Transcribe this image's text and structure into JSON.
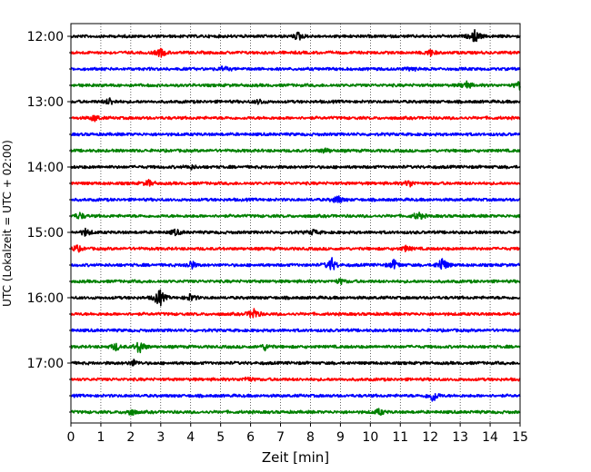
{
  "chart_data": {
    "type": "line",
    "title": "",
    "xlabel": "Zeit  [min]",
    "ylabel": "UTC (Lokalzeit = UTC + 02:00)",
    "xlim": [
      0,
      15
    ],
    "x_ticks": [
      "0",
      "1",
      "2",
      "3",
      "4",
      "5",
      "6",
      "7",
      "8",
      "9",
      "10",
      "11",
      "12",
      "13",
      "14",
      "15"
    ],
    "y_ticks": [
      "12:00",
      "13:00",
      "14:00",
      "15:00",
      "16:00",
      "17:00"
    ],
    "grid": "vertical dotted lines at every minute",
    "trace_interval_minutes": 15,
    "trace_colors": [
      "#000000",
      "#ff0000",
      "#0000ff",
      "#008000"
    ],
    "series": [
      {
        "start": "12:00",
        "color": "#000000",
        "events": [
          {
            "t": 7.6,
            "amp": 0.5
          },
          {
            "t": 13.5,
            "amp": 0.8
          }
        ]
      },
      {
        "start": "12:15",
        "color": "#ff0000",
        "events": [
          {
            "t": 3.0,
            "amp": 0.55
          },
          {
            "t": 12.0,
            "amp": 0.4
          }
        ]
      },
      {
        "start": "12:30",
        "color": "#0000ff",
        "events": [
          {
            "t": 5.1,
            "amp": 0.3
          },
          {
            "t": 11.4,
            "amp": 0.25
          }
        ]
      },
      {
        "start": "12:45",
        "color": "#008000",
        "events": [
          {
            "t": 13.2,
            "amp": 0.5
          },
          {
            "t": 15.0,
            "amp": 0.6
          }
        ]
      },
      {
        "start": "13:00",
        "color": "#000000",
        "events": [
          {
            "t": 1.3,
            "amp": 0.45
          },
          {
            "t": 6.3,
            "amp": 0.3
          }
        ]
      },
      {
        "start": "13:15",
        "color": "#ff0000",
        "events": [
          {
            "t": 0.8,
            "amp": 0.4
          }
        ]
      },
      {
        "start": "13:30",
        "color": "#0000ff",
        "events": []
      },
      {
        "start": "13:45",
        "color": "#008000",
        "events": [
          {
            "t": 8.5,
            "amp": 0.3
          }
        ]
      },
      {
        "start": "14:00",
        "color": "#000000",
        "events": [
          {
            "t": 4.0,
            "amp": 0.25
          }
        ]
      },
      {
        "start": "14:15",
        "color": "#ff0000",
        "events": [
          {
            "t": 2.6,
            "amp": 0.35
          },
          {
            "t": 11.3,
            "amp": 0.45
          }
        ]
      },
      {
        "start": "14:30",
        "color": "#0000ff",
        "events": [
          {
            "t": 8.9,
            "amp": 0.55
          }
        ]
      },
      {
        "start": "14:45",
        "color": "#008000",
        "events": [
          {
            "t": 0.3,
            "amp": 0.4
          },
          {
            "t": 11.6,
            "amp": 0.5
          }
        ]
      },
      {
        "start": "15:00",
        "color": "#000000",
        "events": [
          {
            "t": 0.5,
            "amp": 0.45
          },
          {
            "t": 3.5,
            "amp": 0.35
          },
          {
            "t": 8.1,
            "amp": 0.3
          }
        ]
      },
      {
        "start": "15:15",
        "color": "#ff0000",
        "events": [
          {
            "t": 0.2,
            "amp": 0.4
          },
          {
            "t": 11.2,
            "amp": 0.35
          }
        ]
      },
      {
        "start": "15:30",
        "color": "#0000ff",
        "events": [
          {
            "t": 4.0,
            "amp": 0.55
          },
          {
            "t": 8.7,
            "amp": 0.9
          },
          {
            "t": 10.8,
            "amp": 0.6
          },
          {
            "t": 12.4,
            "amp": 1.0
          }
        ]
      },
      {
        "start": "15:45",
        "color": "#008000",
        "events": [
          {
            "t": 9.0,
            "amp": 0.3
          }
        ]
      },
      {
        "start": "16:00",
        "color": "#000000",
        "events": [
          {
            "t": 2.95,
            "amp": 1.2
          },
          {
            "t": 4.0,
            "amp": 0.45
          }
        ]
      },
      {
        "start": "16:15",
        "color": "#ff0000",
        "events": [
          {
            "t": 6.1,
            "amp": 0.8
          }
        ]
      },
      {
        "start": "16:30",
        "color": "#0000ff",
        "events": []
      },
      {
        "start": "16:45",
        "color": "#008000",
        "events": [
          {
            "t": 1.5,
            "amp": 0.45
          },
          {
            "t": 2.3,
            "amp": 0.9
          },
          {
            "t": 6.5,
            "amp": 0.4
          }
        ]
      },
      {
        "start": "17:00",
        "color": "#000000",
        "events": [
          {
            "t": 2.1,
            "amp": 0.35
          }
        ]
      },
      {
        "start": "17:15",
        "color": "#ff0000",
        "events": [
          {
            "t": 5.9,
            "amp": 0.3
          }
        ]
      },
      {
        "start": "17:30",
        "color": "#0000ff",
        "events": [
          {
            "t": 12.1,
            "amp": 0.8
          }
        ]
      },
      {
        "start": "17:45",
        "color": "#008000",
        "events": [
          {
            "t": 2.0,
            "amp": 0.45
          },
          {
            "t": 10.3,
            "amp": 0.4
          }
        ]
      }
    ]
  }
}
